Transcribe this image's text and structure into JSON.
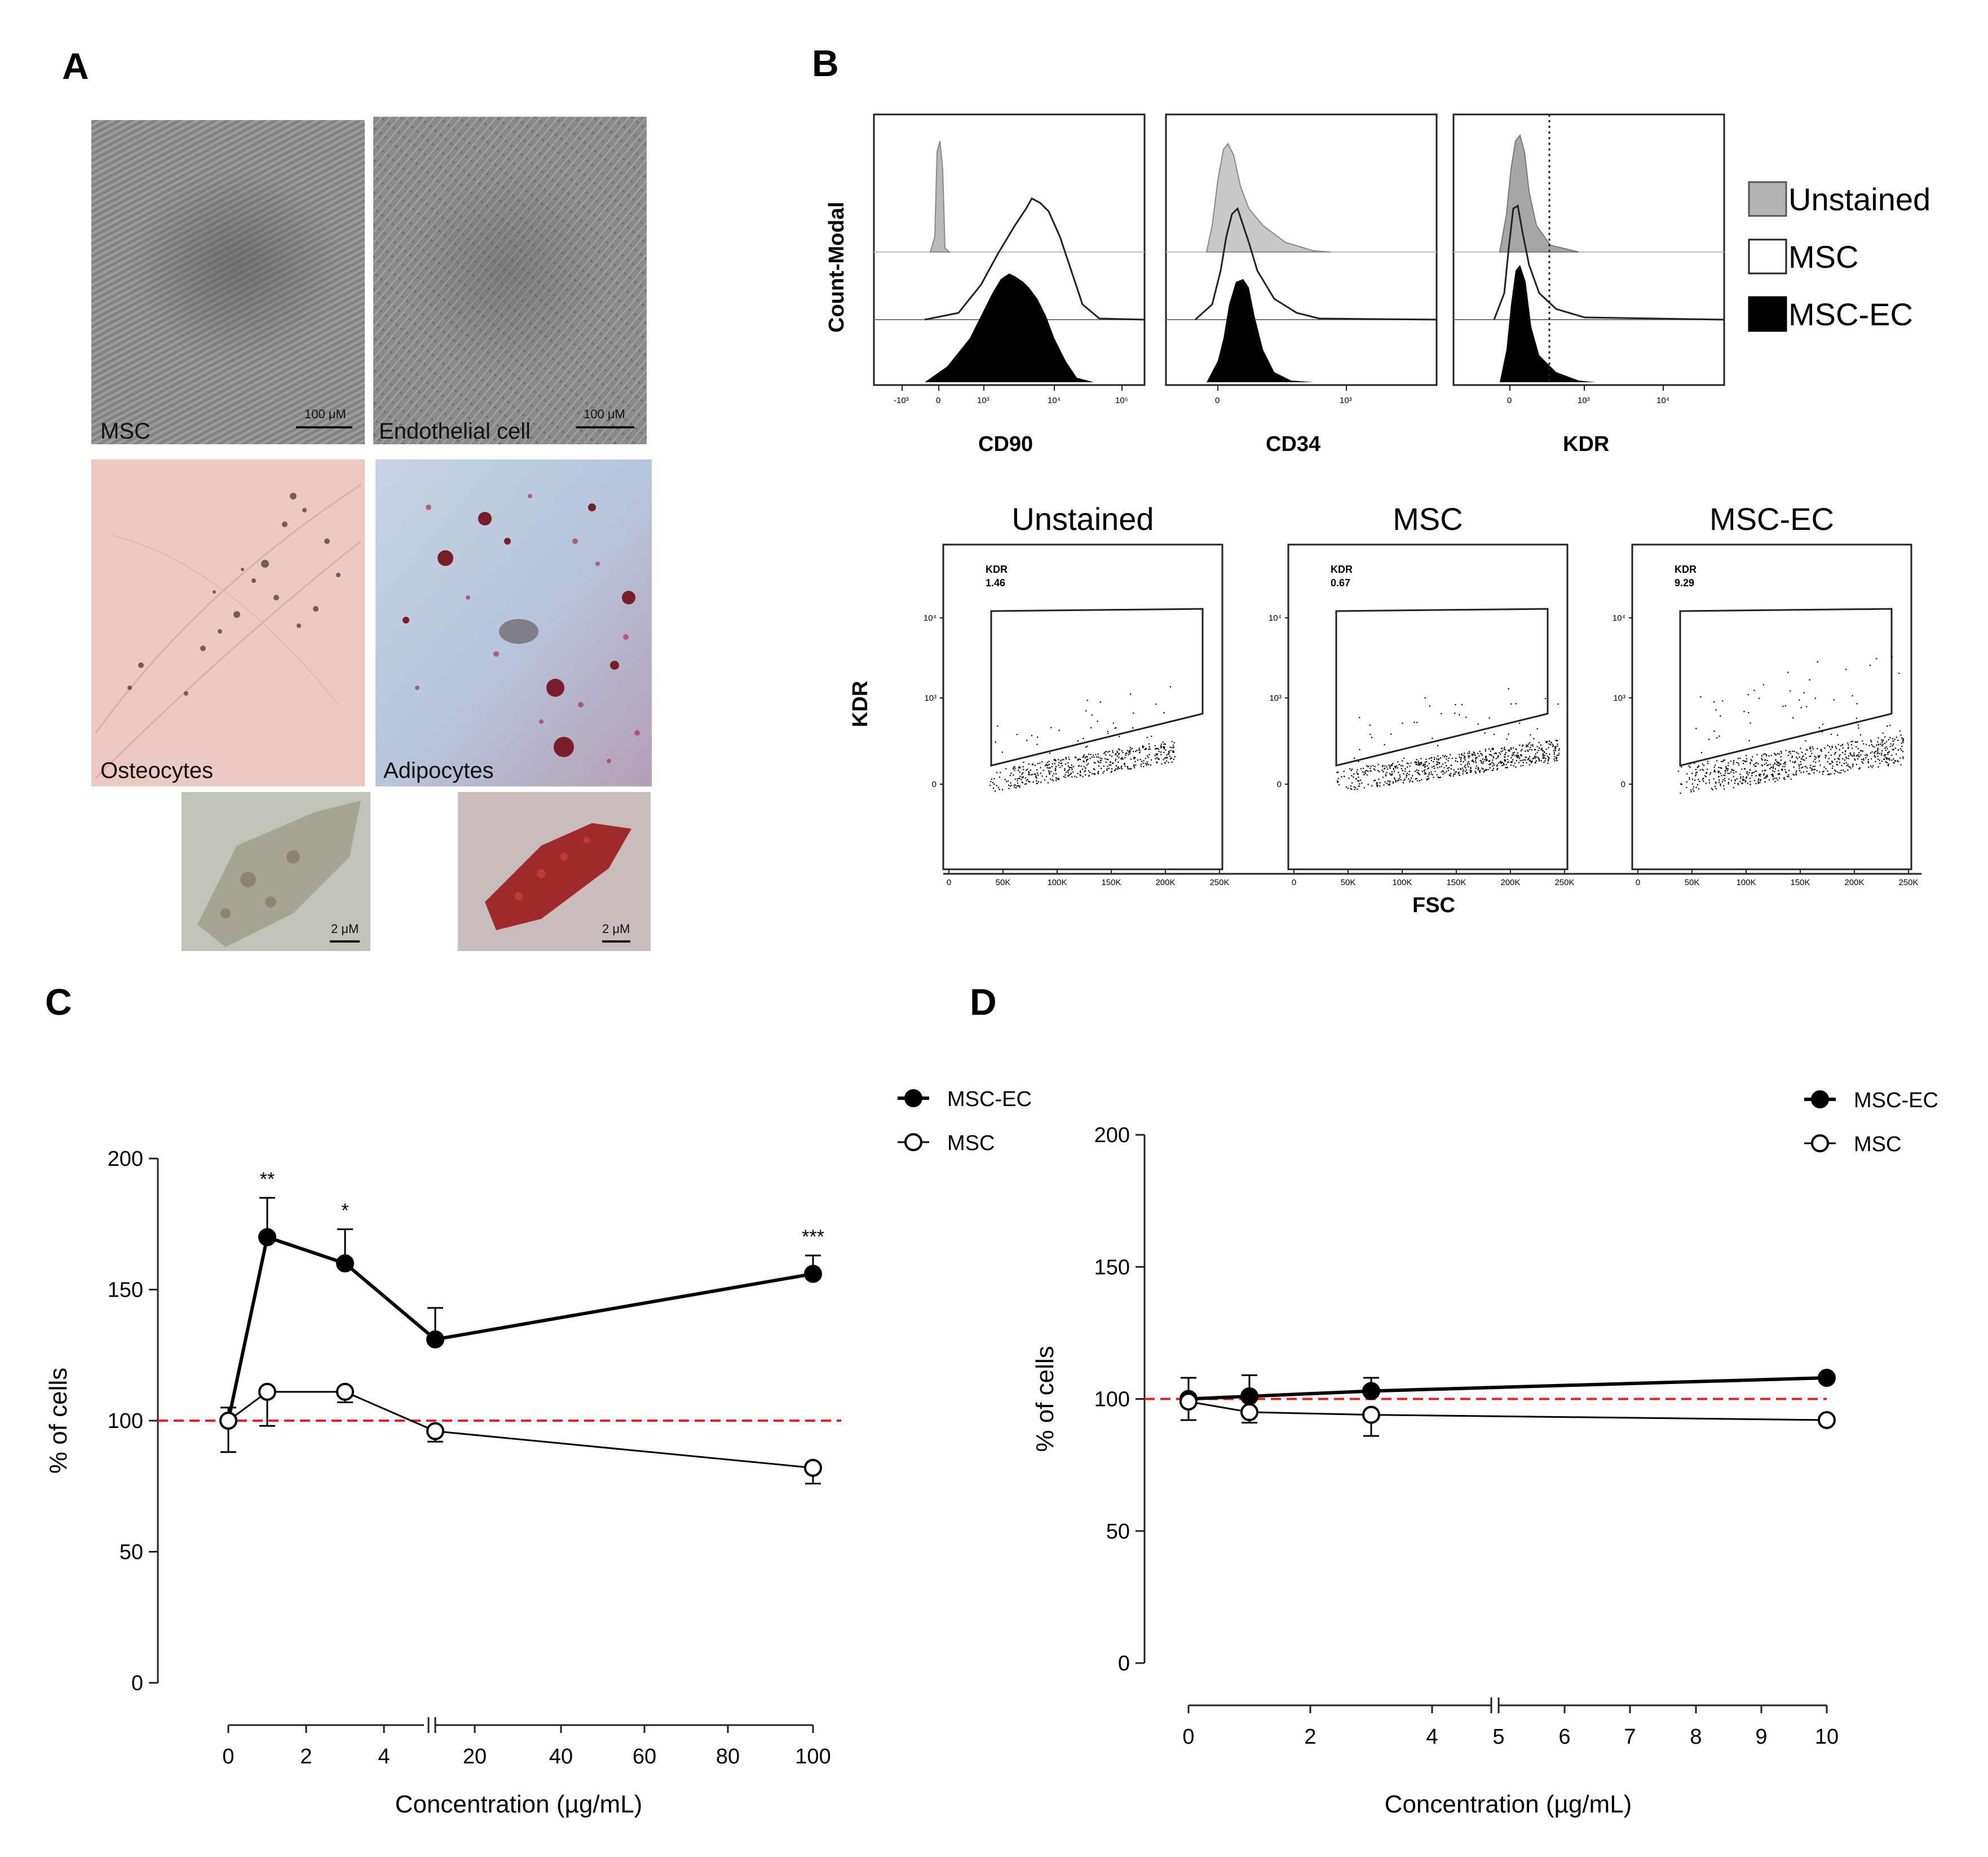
{
  "panels": {
    "A": {
      "letter": "A",
      "images": {
        "msc": {
          "label": "MSC",
          "scale": "100 μM"
        },
        "endothelial": {
          "label": "Endothelial cell",
          "scale": "100 μM"
        },
        "osteocytes": {
          "label": "Osteocytes"
        },
        "adipocytes": {
          "label": "Adipocytes"
        },
        "osteo_zoom": {
          "scale": "2 μM"
        },
        "adipo_zoom": {
          "scale": "2 μM"
        }
      }
    },
    "B": {
      "letter": "B",
      "histograms": {
        "ylabel": "Count-Modal",
        "plots": [
          {
            "xlabel": "CD90",
            "ticks": [
              "-10³",
              "0",
              "10³",
              "10⁴",
              "10⁵"
            ]
          },
          {
            "xlabel": "CD34",
            "ticks": [
              "0",
              "10³"
            ]
          },
          {
            "xlabel": "KDR",
            "ticks": [
              "0",
              "10³",
              "10⁴"
            ]
          }
        ],
        "legend": [
          "Unstained",
          "MSC",
          "MSC-EC"
        ]
      },
      "scatter": {
        "ylabel": "KDR",
        "xlabel": "FSC",
        "yticks": [
          "10⁴",
          "10³",
          "0"
        ],
        "xticks": [
          "0",
          "50K",
          "100K",
          "150K",
          "200K",
          "250K"
        ],
        "plots": [
          {
            "title": "Unstained",
            "gate_name": "KDR",
            "gate_value": "1.46"
          },
          {
            "title": "MSC",
            "gate_name": "KDR",
            "gate_value": "0.67"
          },
          {
            "title": "MSC-EC",
            "gate_name": "KDR",
            "gate_value": "9.29"
          }
        ]
      }
    },
    "C": {
      "letter": "C"
    },
    "D": {
      "letter": "D"
    }
  },
  "chart_data": [
    {
      "panel": "C",
      "type": "line",
      "xlabel": "Concentration (µg/mL)",
      "ylabel": "% of cells",
      "ylim": [
        0,
        200
      ],
      "yticks": [
        "0",
        "50",
        "100",
        "150",
        "200"
      ],
      "xticks": [
        "0",
        "2",
        "4",
        "20",
        "40",
        "60",
        "80",
        "100"
      ],
      "x_axis_break": true,
      "reference_line": 100,
      "legend": [
        "MSC-EC",
        "MSC"
      ],
      "x": [
        0,
        1,
        3,
        10,
        100
      ],
      "series": [
        {
          "name": "MSC-EC",
          "marker": "filled",
          "values": [
            100,
            170,
            160,
            131,
            156
          ],
          "error": [
            5,
            15,
            13,
            12,
            7
          ],
          "significance": [
            "",
            "**",
            "*",
            "",
            "***"
          ]
        },
        {
          "name": "MSC",
          "marker": "open",
          "values": [
            100,
            111,
            111,
            96,
            82
          ],
          "error": [
            12,
            13,
            4,
            4,
            6
          ]
        }
      ]
    },
    {
      "panel": "D",
      "type": "line",
      "xlabel": "Concentration (µg/mL)",
      "ylabel": "% of cells",
      "ylim": [
        0,
        200
      ],
      "yticks": [
        "0",
        "50",
        "100",
        "150",
        "200"
      ],
      "xticks": [
        "0",
        "2",
        "4",
        "5",
        "6",
        "7",
        "8",
        "9",
        "10"
      ],
      "x_axis_break": true,
      "reference_line": 100,
      "legend": [
        "MSC-EC",
        "MSC"
      ],
      "x": [
        0,
        1,
        3,
        10
      ],
      "series": [
        {
          "name": "MSC-EC",
          "marker": "filled",
          "values": [
            100,
            101,
            103,
            108
          ],
          "error": [
            8,
            8,
            5,
            0
          ]
        },
        {
          "name": "MSC",
          "marker": "open",
          "values": [
            99,
            95,
            94,
            92
          ],
          "error": [
            7,
            4,
            8,
            0
          ]
        }
      ]
    }
  ]
}
